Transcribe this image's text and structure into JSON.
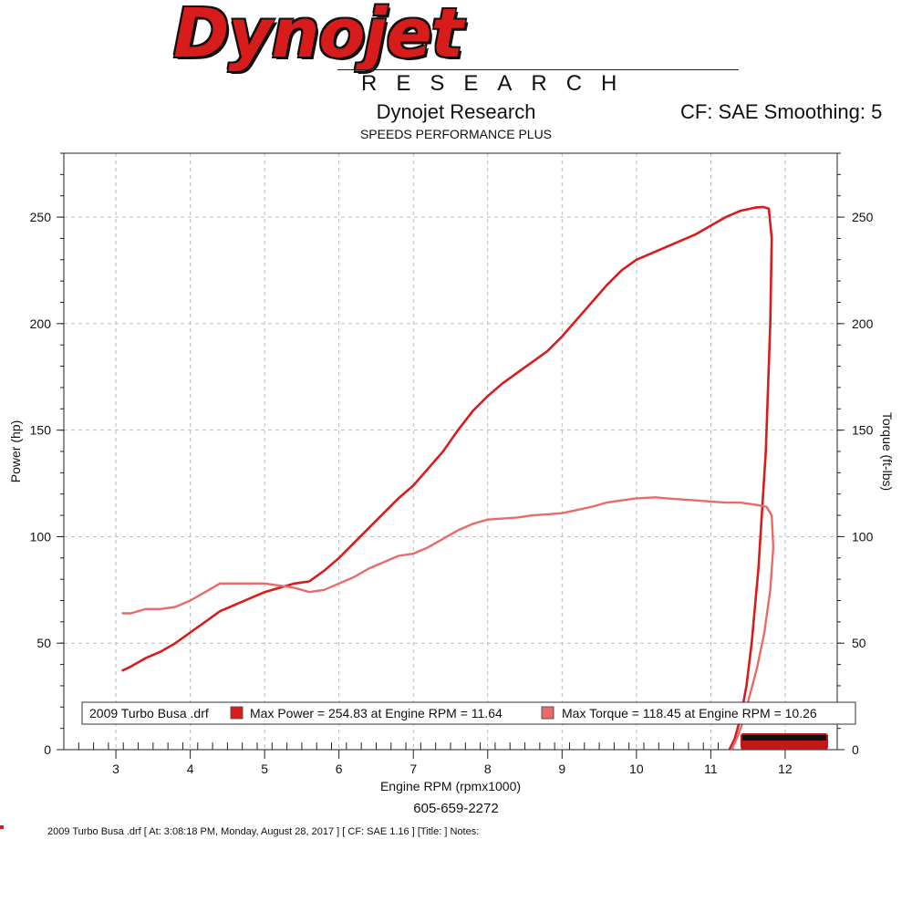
{
  "logo": {
    "brand": "Dynojet",
    "sub": "RESEARCH"
  },
  "header": {
    "title": "Dynojet Research",
    "subtitle": "SPEEDS PERFORMANCE PLUS",
    "cf_info": "CF: SAE Smoothing: 5"
  },
  "phone": "605-659-2272",
  "footer": "2009 Turbo Busa .drf [ At: 3:08:18 PM, Monday, August 28, 2017 ] [ CF: SAE 1.16 ] [Title: ]  Notes:",
  "colors": {
    "power": "#d81c1c",
    "torque": "#e86a6a",
    "grid": "#bcbcbc"
  },
  "chart_data": {
    "type": "line",
    "xlabel": "Engine RPM (rpmx1000)",
    "ylabel": "Power (hp)",
    "y2label": "Torque (ft-lbs)",
    "xlim": [
      2.3,
      12.7
    ],
    "ylim": [
      0,
      280
    ],
    "y2lim": [
      0,
      280
    ],
    "xticks": [
      3,
      4,
      5,
      6,
      7,
      8,
      9,
      10,
      11,
      12
    ],
    "yticks": [
      0,
      50,
      100,
      150,
      200,
      250
    ],
    "grid": true,
    "legend": {
      "file": "2009 Turbo Busa .drf",
      "items": [
        "Max Power = 254.83 at Engine RPM = 11.64",
        "Max Torque = 118.45 at Engine RPM = 10.26"
      ]
    },
    "series": [
      {
        "name": "Max Power",
        "axis": "left",
        "x": [
          3.08,
          3.2,
          3.4,
          3.6,
          3.8,
          4.0,
          4.2,
          4.4,
          4.6,
          4.8,
          5.0,
          5.2,
          5.4,
          5.6,
          5.8,
          6.0,
          6.2,
          6.4,
          6.6,
          6.8,
          7.0,
          7.2,
          7.4,
          7.6,
          7.8,
          8.0,
          8.2,
          8.4,
          8.6,
          8.8,
          9.0,
          9.2,
          9.4,
          9.6,
          9.8,
          10.0,
          10.2,
          10.4,
          10.6,
          10.8,
          11.0,
          11.2,
          11.4,
          11.6,
          11.7,
          11.78,
          11.82,
          11.8,
          11.74,
          11.64,
          11.55,
          11.48,
          11.4,
          11.32,
          11.25
        ],
        "values": [
          37,
          39,
          43,
          46,
          50,
          55,
          60,
          65,
          68,
          71,
          74,
          76,
          78,
          79,
          84,
          90,
          97,
          104,
          111,
          118,
          124,
          132,
          140,
          150,
          159,
          166,
          172,
          177,
          182,
          187,
          194,
          202,
          210,
          218,
          225,
          230,
          233,
          236,
          239,
          242,
          246,
          250,
          253,
          254.5,
          254.8,
          254,
          240,
          200,
          140,
          85,
          50,
          30,
          15,
          5,
          0
        ]
      },
      {
        "name": "Max Torque",
        "axis": "right",
        "x": [
          3.08,
          3.2,
          3.4,
          3.6,
          3.8,
          4.0,
          4.2,
          4.4,
          4.6,
          4.8,
          5.0,
          5.2,
          5.4,
          5.6,
          5.8,
          6.0,
          6.2,
          6.4,
          6.6,
          6.8,
          7.0,
          7.2,
          7.4,
          7.6,
          7.8,
          8.0,
          8.2,
          8.4,
          8.6,
          8.8,
          9.0,
          9.2,
          9.4,
          9.6,
          9.8,
          10.0,
          10.26,
          10.4,
          10.6,
          10.8,
          11.0,
          11.2,
          11.4,
          11.6,
          11.75,
          11.82,
          11.84,
          11.8,
          11.72,
          11.62,
          11.52,
          11.44,
          11.36,
          11.28
        ],
        "values": [
          64,
          64,
          66,
          66,
          67,
          70,
          74,
          78,
          78,
          78,
          78,
          77,
          76,
          74,
          75,
          78,
          81,
          85,
          88,
          91,
          92,
          95,
          99,
          103,
          106,
          108,
          108.5,
          109,
          110,
          110.5,
          111,
          112.5,
          114,
          116,
          117,
          118,
          118.45,
          118,
          117.5,
          117,
          116.5,
          116,
          116,
          115,
          114,
          110,
          95,
          75,
          55,
          38,
          25,
          14,
          6,
          0
        ]
      }
    ]
  }
}
